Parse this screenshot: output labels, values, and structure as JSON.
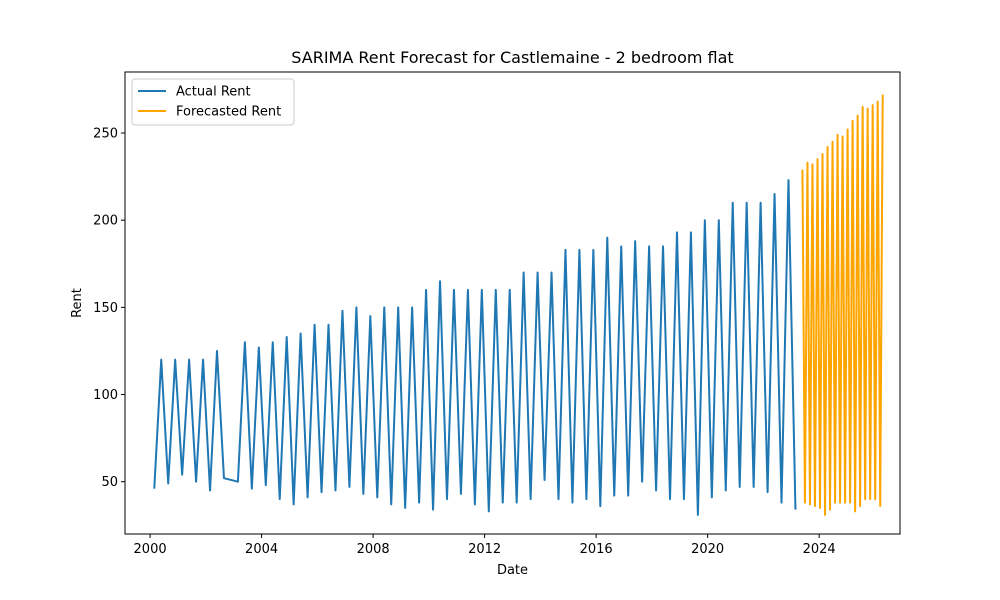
{
  "chart_data": {
    "type": "line",
    "title": "SARIMA Rent Forecast for Castlemaine - 2 bedroom flat",
    "xlabel": "Date",
    "ylabel": "Rent",
    "xlim": [
      1999.1,
      2026.9
    ],
    "ylim": [
      20,
      285
    ],
    "xticks": [
      2000,
      2004,
      2008,
      2012,
      2016,
      2020,
      2024
    ],
    "xtick_labels": [
      "2000",
      "2004",
      "2008",
      "2012",
      "2016",
      "2020",
      "2024"
    ],
    "yticks": [
      50,
      100,
      150,
      200,
      250
    ],
    "ytick_labels": [
      "50",
      "100",
      "150",
      "200",
      "250"
    ],
    "grid": false,
    "legend": "top-left",
    "series": [
      {
        "name": "Actual Rent",
        "color": "#1f77b4",
        "x": [
          2000.15,
          2000.4,
          2000.65,
          2000.9,
          2001.15,
          2001.4,
          2001.65,
          2001.9,
          2002.15,
          2002.4,
          2002.65,
          2003.15,
          2003.4,
          2003.65,
          2003.9,
          2004.15,
          2004.4,
          2004.65,
          2004.9,
          2005.15,
          2005.4,
          2005.65,
          2005.9,
          2006.15,
          2006.4,
          2006.65,
          2006.9,
          2007.15,
          2007.4,
          2007.65,
          2007.9,
          2008.15,
          2008.4,
          2008.65,
          2008.9,
          2009.15,
          2009.4,
          2009.65,
          2009.9,
          2010.15,
          2010.4,
          2010.65,
          2010.9,
          2011.15,
          2011.4,
          2011.65,
          2011.9,
          2012.15,
          2012.4,
          2012.65,
          2012.9,
          2013.15,
          2013.4,
          2013.65,
          2013.9,
          2014.15,
          2014.4,
          2014.65,
          2014.9,
          2015.15,
          2015.4,
          2015.65,
          2015.9,
          2016.15,
          2016.4,
          2016.65,
          2016.9,
          2017.15,
          2017.4,
          2017.65,
          2017.9,
          2018.15,
          2018.4,
          2018.65,
          2018.9,
          2019.15,
          2019.4,
          2019.65,
          2019.9,
          2020.15,
          2020.4,
          2020.65,
          2020.9,
          2021.15,
          2021.4,
          2021.65,
          2021.9,
          2022.15,
          2022.4,
          2022.65,
          2022.9,
          2023.15
        ],
        "y": [
          46,
          120,
          49,
          120,
          54,
          120,
          50,
          120,
          45,
          125,
          52,
          50,
          130,
          46,
          127,
          48,
          130,
          40,
          133,
          37,
          135,
          41,
          140,
          44,
          140,
          45,
          148,
          47,
          150,
          43,
          145,
          41,
          150,
          37,
          150,
          35,
          150,
          38,
          160,
          34,
          165,
          40,
          160,
          43,
          160,
          37,
          160,
          33,
          160,
          38,
          160,
          38,
          170,
          40,
          170,
          51,
          170,
          40,
          183,
          38,
          183,
          40,
          183,
          36,
          190,
          42,
          185,
          42,
          188,
          50,
          185,
          45,
          185,
          40,
          193,
          40,
          193,
          31,
          200,
          41,
          200,
          45,
          210,
          47,
          210,
          47,
          210,
          44,
          215,
          38,
          223,
          34
        ]
      },
      {
        "name": "Forecasted Rent",
        "color": "#ffa500",
        "x": [
          2023.4,
          2023.49,
          2023.58,
          2023.67,
          2023.76,
          2023.85,
          2023.94,
          2024.03,
          2024.12,
          2024.21,
          2024.3,
          2024.39,
          2024.48,
          2024.57,
          2024.66,
          2024.75,
          2024.84,
          2024.93,
          2025.02,
          2025.11,
          2025.2,
          2025.29,
          2025.38,
          2025.47,
          2025.56,
          2025.65,
          2025.74,
          2025.83,
          2025.92,
          2026.01,
          2026.1,
          2026.19,
          2026.28
        ],
        "y": [
          229,
          38,
          233,
          37,
          232,
          36,
          235,
          35,
          238,
          31,
          242,
          34,
          245,
          38,
          249,
          38,
          248,
          38,
          252,
          38,
          257,
          33,
          260,
          36,
          265,
          40,
          264,
          40,
          266,
          40,
          268,
          36,
          272
        ]
      }
    ]
  }
}
